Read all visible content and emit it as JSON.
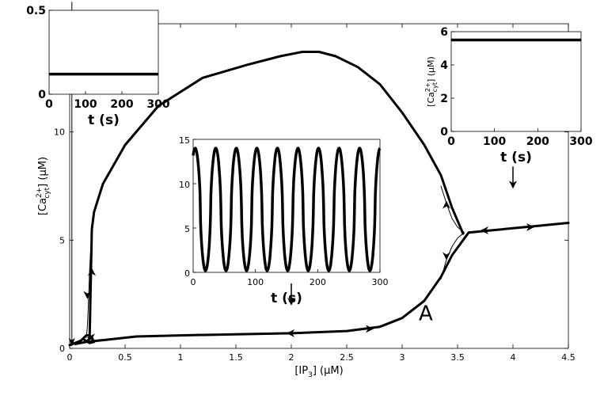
{
  "chart_data": [
    {
      "id": "main",
      "type": "line",
      "title": "",
      "xlabel": {
        "main": "[IP",
        "sub": "3",
        "unit": "] (μM)"
      },
      "ylabel": {
        "main": "[Ca",
        "sup": "2+",
        "sub": "cyt",
        "unit": "] (μM)"
      },
      "xlim": [
        0,
        4.5
      ],
      "ylim": [
        0,
        15
      ],
      "xticks": [
        "0",
        "0.5",
        "1",
        "1.5",
        "2",
        "2.5",
        "3",
        "3.5",
        "4",
        "4.5"
      ],
      "yticks": [
        "0",
        "5",
        "10"
      ],
      "panel_label": "A",
      "series": [
        {
          "style": "thick",
          "x": [
            0.05,
            0.1,
            0.15,
            0.18,
            0.2,
            0.22,
            0.3,
            0.5,
            0.8,
            1.2,
            1.6,
            1.9,
            2.1,
            2.25,
            2.4,
            2.6,
            2.8,
            3.0,
            3.2,
            3.35,
            3.45,
            3.55
          ],
          "y": [
            0.2,
            0.25,
            0.3,
            0.45,
            5.5,
            6.3,
            7.6,
            9.4,
            11.2,
            12.5,
            13.1,
            13.5,
            13.7,
            13.7,
            13.5,
            13.0,
            12.2,
            10.9,
            9.4,
            8.0,
            6.5,
            5.3
          ]
        },
        {
          "style": "thick",
          "x": [
            0.15,
            0.3,
            0.6,
            1.0,
            1.5,
            2.0,
            2.5,
            2.8,
            3.0,
            3.2,
            3.35,
            3.45,
            3.55,
            3.6
          ],
          "y": [
            0.3,
            0.38,
            0.55,
            0.6,
            0.65,
            0.7,
            0.8,
            1.0,
            1.4,
            2.2,
            3.3,
            4.3,
            5.0,
            5.35
          ]
        },
        {
          "style": "thick",
          "x": [
            3.6,
            3.8,
            4.0,
            4.2,
            4.5
          ],
          "y": [
            5.35,
            5.45,
            5.55,
            5.65,
            5.8
          ]
        },
        {
          "style": "thick",
          "x": [
            0,
            0.1,
            0.15,
            0.17,
            0.2,
            0.22,
            0.18,
            0.13
          ],
          "y": [
            0.15,
            0.35,
            0.6,
            0.6,
            0.5,
            0.3,
            0.25,
            0.4
          ]
        },
        {
          "style": "thin",
          "x": [
            0.15,
            0.16,
            0.17,
            0.18,
            0.19,
            0.2
          ],
          "y": [
            0.5,
            1.0,
            2.2,
            3.6,
            4.6,
            5.5
          ]
        },
        {
          "style": "thin",
          "x": [
            3.35,
            3.4,
            3.45,
            3.5,
            3.56
          ],
          "y": [
            7.5,
            6.7,
            6.0,
            5.6,
            5.35
          ]
        },
        {
          "style": "thin",
          "x": [
            3.35,
            3.4,
            3.45,
            3.5,
            3.56
          ],
          "y": [
            3.2,
            4.1,
            4.7,
            5.1,
            5.35
          ]
        },
        {
          "style": "thin",
          "x": [
            0.02,
            0.02
          ],
          "y": [
            16,
            0.2
          ]
        }
      ],
      "arrows": [
        {
          "x": 0.2,
          "y": 3.5,
          "dir": "up"
        },
        {
          "x": 0.16,
          "y": 2.5,
          "dir": "down"
        },
        {
          "x": 3.4,
          "y": 6.6,
          "dir": "up"
        },
        {
          "x": 3.4,
          "y": 4.3,
          "dir": "down"
        },
        {
          "x": 3.75,
          "y": 5.45,
          "dir": "left"
        },
        {
          "x": 4.15,
          "y": 5.6,
          "dir": "right"
        },
        {
          "x": 2.0,
          "y": 0.7,
          "dir": "left"
        },
        {
          "x": 2.7,
          "y": 0.9,
          "dir": "right"
        },
        {
          "x": 0.2,
          "y": 0.5,
          "dir": "left"
        }
      ],
      "markers": [
        {
          "x": 2.0,
          "y": 2.2,
          "dir": "down"
        },
        {
          "x": 4.0,
          "y": 7.6,
          "dir": "down"
        }
      ]
    },
    {
      "id": "inset_left",
      "type": "line",
      "xlabel": "t (s)",
      "xlim": [
        0,
        300
      ],
      "ylim": [
        0,
        0.5
      ],
      "xticks": [
        "0",
        "100",
        "200",
        "300"
      ],
      "yticks": [
        "0",
        "0.5"
      ],
      "series": [
        {
          "x": [
            0,
            300
          ],
          "y": [
            0.12,
            0.12
          ]
        }
      ]
    },
    {
      "id": "inset_center",
      "type": "line",
      "xlabel": "t (s)",
      "xlim": [
        0,
        300
      ],
      "ylim": [
        0,
        15
      ],
      "xticks": [
        "0",
        "100",
        "200",
        "300"
      ],
      "yticks": [
        "0",
        "5",
        "10",
        "15"
      ],
      "oscillation": {
        "period_s": 33,
        "min": 0.2,
        "max": 14,
        "phase_start": 0.9
      }
    },
    {
      "id": "inset_right",
      "type": "line",
      "xlabel": "t (s)",
      "ylabel": {
        "main": "[Ca",
        "sup": "2+",
        "sub": "cyt",
        "unit": "] (μM)"
      },
      "xlim": [
        0,
        300
      ],
      "ylim": [
        0,
        6
      ],
      "xticks": [
        "0",
        "100",
        "200",
        "300"
      ],
      "yticks": [
        "0",
        "2",
        "4",
        "6"
      ],
      "series": [
        {
          "x": [
            0,
            300
          ],
          "y": [
            5.5,
            5.5
          ]
        }
      ]
    }
  ]
}
